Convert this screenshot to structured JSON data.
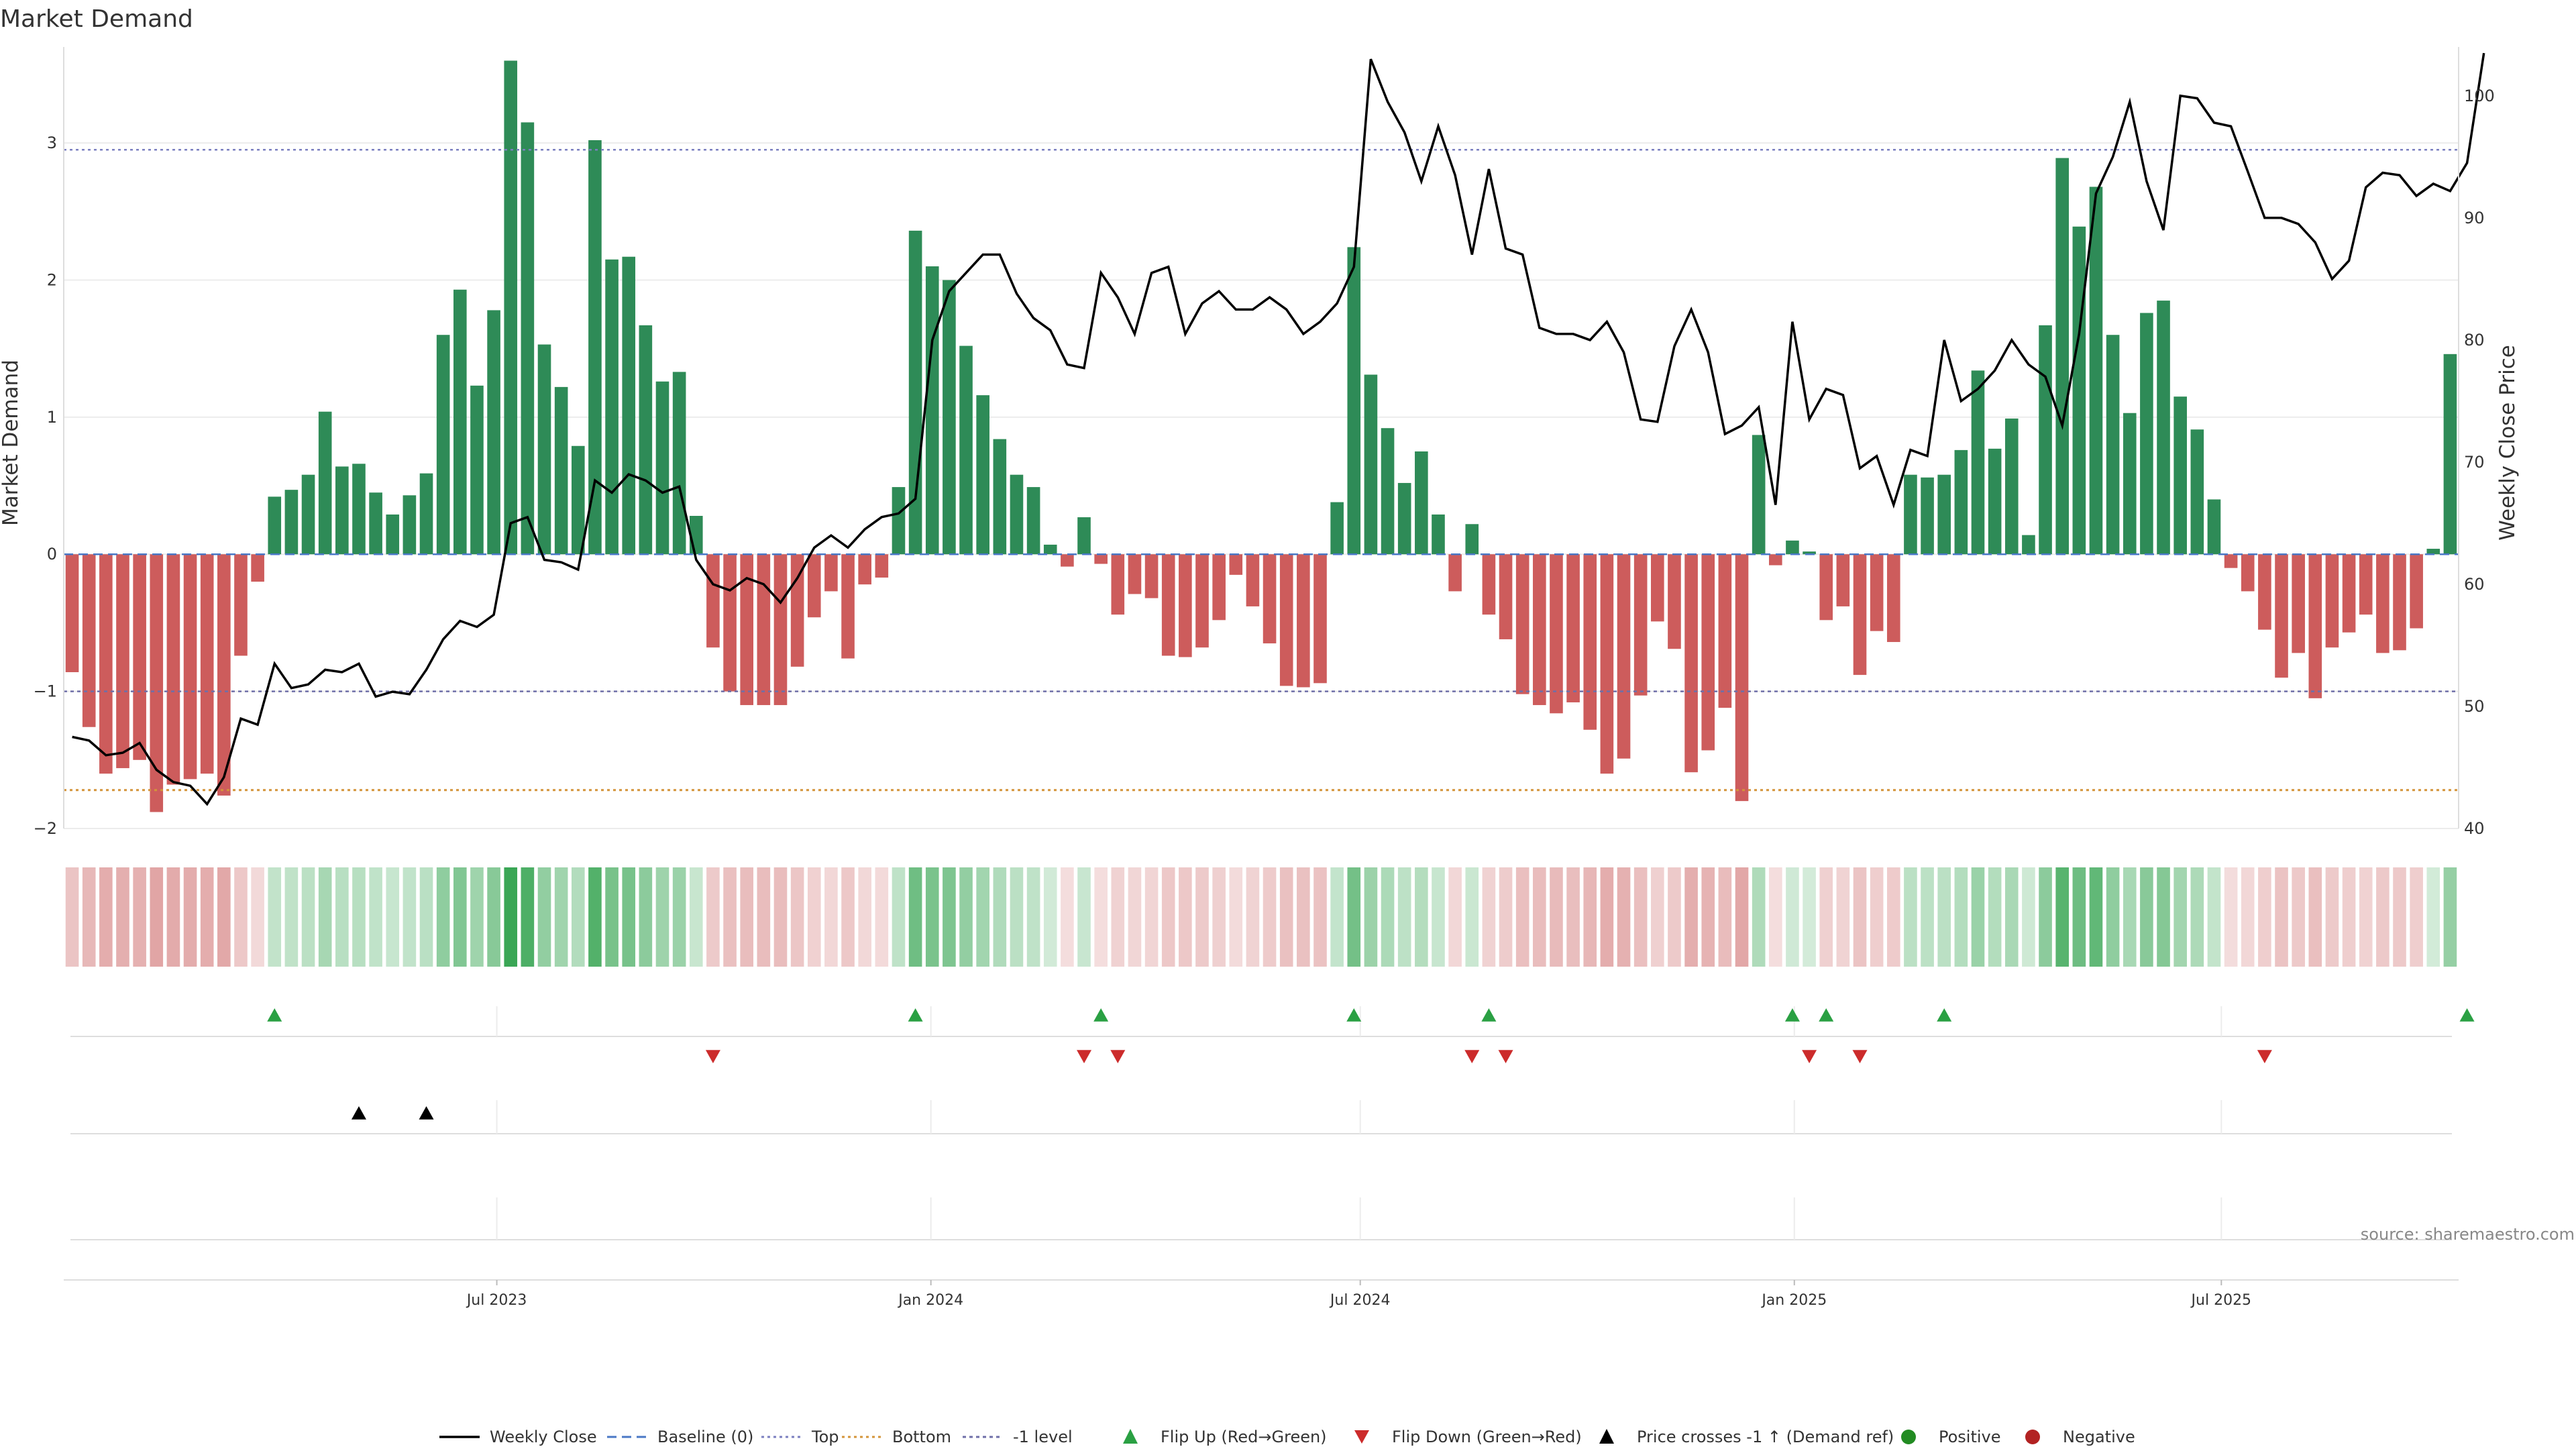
{
  "chart_data": {
    "type": "bar",
    "title": "Market Demand",
    "ylabel": "Market Demand",
    "y2label": "Weekly Close Price",
    "ylim": [
      -2.0,
      3.7
    ],
    "y2lim": [
      40,
      104
    ],
    "yticks": [
      -2,
      -1,
      0,
      1,
      2,
      3
    ],
    "y2ticks": [
      40,
      50,
      60,
      70,
      80,
      90,
      100
    ],
    "reference_levels": {
      "top": 2.95,
      "bottom": -1.72,
      "minus_one": -1.0,
      "baseline": 0
    },
    "x_start": "2023-01-02",
    "x_end": "2025-10-06",
    "x_ticks": [
      {
        "date": "2023-07-01",
        "label": "Jul 2023"
      },
      {
        "date": "2024-01-01",
        "label": "Jan 2024"
      },
      {
        "date": "2024-07-01",
        "label": "Jul 2024"
      },
      {
        "date": "2025-01-01",
        "label": "Jan 2025"
      },
      {
        "date": "2025-07-01",
        "label": "Jul 2025"
      }
    ],
    "demand": [
      -0.86,
      -1.26,
      -1.6,
      -1.56,
      -1.5,
      -1.88,
      -1.68,
      -1.64,
      -1.6,
      -1.76,
      -0.74,
      -0.2,
      0.42,
      0.47,
      0.58,
      1.04,
      0.64,
      0.66,
      0.45,
      0.29,
      0.43,
      0.59,
      1.6,
      1.93,
      1.23,
      1.78,
      3.6,
      3.15,
      1.53,
      1.22,
      0.79,
      3.02,
      2.15,
      2.17,
      1.67,
      1.26,
      1.33,
      0.28,
      -0.68,
      -1.0,
      -1.1,
      -1.1,
      -1.1,
      -0.82,
      -0.46,
      -0.27,
      -0.76,
      -0.22,
      -0.17,
      0.49,
      2.36,
      2.1,
      2.0,
      1.52,
      1.16,
      0.84,
      0.58,
      0.49,
      0.07,
      -0.09,
      0.27,
      -0.07,
      -0.44,
      -0.29,
      -0.32,
      -0.74,
      -0.75,
      -0.68,
      -0.48,
      -0.15,
      -0.38,
      -0.65,
      -0.96,
      -0.97,
      -0.94,
      0.38,
      2.24,
      1.31,
      0.92,
      0.52,
      0.75,
      0.29,
      -0.27,
      0.22,
      -0.44,
      -0.62,
      -1.02,
      -1.1,
      -1.16,
      -1.08,
      -1.28,
      -1.6,
      -1.49,
      -1.03,
      -0.49,
      -0.69,
      -1.59,
      -1.43,
      -1.12,
      -1.8,
      0.87,
      -0.08,
      0.1,
      0.02,
      -0.48,
      -0.38,
      -0.88,
      -0.56,
      -0.64,
      0.58,
      0.56,
      0.58,
      0.76,
      1.34,
      0.77,
      0.99,
      0.14,
      1.67,
      2.89,
      2.39,
      2.68,
      1.6,
      1.03,
      1.76,
      1.85,
      1.15,
      0.91,
      0.4,
      -0.1,
      -0.27,
      -0.55,
      -0.9,
      -0.72,
      -1.05,
      -0.68,
      -0.57,
      -0.44,
      -0.72,
      -0.7,
      -0.54,
      0.04,
      1.46
    ],
    "close": [
      47.5,
      47.2,
      46.0,
      46.2,
      47.0,
      44.8,
      43.8,
      43.5,
      42.0,
      44.2,
      49.0,
      48.5,
      53.5,
      51.5,
      51.8,
      53.0,
      52.8,
      53.5,
      50.8,
      51.2,
      51.0,
      53.0,
      55.5,
      57.0,
      56.5,
      57.5,
      65.0,
      65.5,
      62.0,
      61.8,
      61.2,
      68.5,
      67.5,
      69.0,
      68.5,
      67.5,
      68.0,
      62.0,
      60.0,
      59.5,
      60.5,
      60.0,
      58.5,
      60.5,
      63.0,
      64.0,
      63.0,
      64.5,
      65.5,
      65.8,
      67.0,
      80.0,
      84.0,
      85.5,
      87.0,
      87.0,
      83.8,
      81.8,
      80.8,
      78.0,
      77.7,
      85.5,
      83.5,
      80.5,
      85.5,
      86.0,
      80.5,
      83.0,
      84.0,
      82.5,
      82.5,
      83.5,
      82.5,
      80.5,
      81.5,
      83.0,
      86.0,
      103.0,
      99.5,
      97.0,
      93.0,
      97.5,
      93.5,
      87.0,
      94.0,
      87.5,
      87.0,
      81.0,
      80.5,
      80.5,
      80.0,
      81.5,
      79.0,
      73.5,
      73.3,
      79.5,
      82.5,
      79.0,
      72.3,
      73.0,
      74.5,
      66.5,
      81.5,
      73.5,
      76.0,
      75.5,
      69.5,
      70.5,
      66.5,
      71.0,
      70.5,
      80.0,
      75.0,
      76.0,
      77.5,
      80.0,
      78.0,
      77.0,
      73.0,
      80.5,
      92.0,
      95.0,
      99.5,
      93.0,
      89.0,
      100.0,
      99.8,
      97.8,
      97.5,
      93.8,
      90.0,
      90.0,
      89.5,
      88.0,
      85.0,
      86.5,
      92.5,
      93.7,
      93.5,
      91.8,
      92.8,
      92.2,
      94.5,
      103.5
    ],
    "flip_up_idx": [
      12,
      50,
      61,
      76,
      84,
      102,
      104,
      111,
      142
    ],
    "flip_down_idx": [
      38,
      60,
      62,
      83,
      85,
      103,
      106,
      130
    ],
    "price_cross_idx": [
      17,
      21
    ],
    "legend": [
      {
        "key": "close",
        "label": "Weekly Close"
      },
      {
        "key": "baseline",
        "label": "Baseline (0)"
      },
      {
        "key": "top",
        "label": "Top"
      },
      {
        "key": "bottom",
        "label": "Bottom"
      },
      {
        "key": "minus_one",
        "label": "-1 level"
      },
      {
        "key": "flip_up",
        "label": "Flip Up (Red→Green)"
      },
      {
        "key": "flip_down",
        "label": "Flip Down (Green→Red)"
      },
      {
        "key": "price_cross",
        "label": "Price crosses -1 ↑ (Demand ref)"
      },
      {
        "key": "positive",
        "label": "Positive"
      },
      {
        "key": "negative",
        "label": "Negative"
      }
    ],
    "source": "source: sharemaestro.com"
  },
  "colors": {
    "positive": "#2e8b57",
    "negative": "#cd5c5c",
    "line": "#000000",
    "baseline": "#4a78c6",
    "top": "#7b7fc0",
    "bottom": "#d4943a",
    "minus_one": "#6f6fa8",
    "flip_up": "#2aa043",
    "flip_down": "#cc2b2b",
    "price_cross": "#000000",
    "legend_positive": "#228b22",
    "legend_negative": "#b22222"
  }
}
